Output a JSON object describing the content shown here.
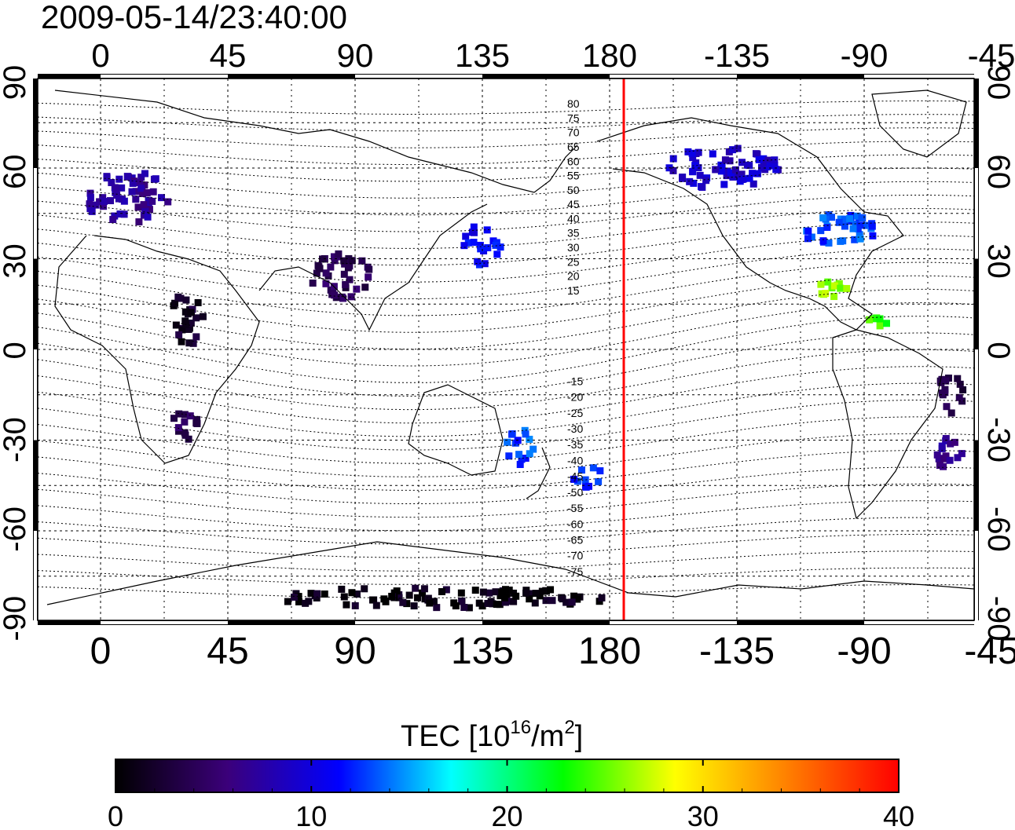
{
  "timestamp": "2009-05-14/23:40:00",
  "lon_ticks": [
    "0",
    "45",
    "90",
    "135",
    "180",
    "-135",
    "-90",
    "-45"
  ],
  "lat_ticks": [
    "90",
    "60",
    "30",
    "0",
    "-30",
    "-60",
    "-90"
  ],
  "map": {
    "type": "heatmap",
    "projection": "equirectangular, centered near 150E",
    "grid": true,
    "red_line_longitude": -175,
    "lat_contour_labels": [
      "80",
      "75",
      "70",
      "65",
      "60",
      "55",
      "50",
      "45",
      "40",
      "35",
      "30",
      "25",
      "20",
      "15",
      "-15",
      "-20",
      "-25",
      "-30",
      "-35",
      "-40",
      "-45",
      "-50",
      "-55",
      "-60",
      "-65",
      "-70",
      "-75"
    ]
  },
  "colorbar": {
    "title_prefix": "TEC  [10",
    "title_exp": "16",
    "title_mid": "/m",
    "title_exp2": "2",
    "title_suffix": "]",
    "range": [
      0,
      40
    ],
    "ticks": [
      "0",
      "10",
      "20",
      "30",
      "40"
    ],
    "stops": [
      "#000000",
      "#3b007a",
      "#0000ff",
      "#00ffff",
      "#00ff00",
      "#ffff00",
      "#ff8000",
      "#ff0000"
    ]
  },
  "chart_data": {
    "type": "heatmap",
    "quantity": "TEC",
    "unit": "10^16/m^2",
    "value_range": [
      0,
      40
    ],
    "regions": [
      {
        "lon": 10,
        "lat": 50,
        "tec": 7
      },
      {
        "lon": 30,
        "lat": 10,
        "tec": 2
      },
      {
        "lon": 30,
        "lat": -25,
        "tec": 4
      },
      {
        "lon": 85,
        "lat": 25,
        "tec": 4
      },
      {
        "lon": 135,
        "lat": 35,
        "tec": 11
      },
      {
        "lon": 148,
        "lat": -32,
        "tec": 13
      },
      {
        "lon": 172,
        "lat": -42,
        "tec": 12
      },
      {
        "lon": -140,
        "lat": 60,
        "tec": 9
      },
      {
        "lon": -100,
        "lat": 40,
        "tec": 13
      },
      {
        "lon": -100,
        "lat": 20,
        "tec": 26
      },
      {
        "lon": -85,
        "lat": 10,
        "tec": 24
      },
      {
        "lon": -60,
        "lat": -15,
        "tec": 3
      },
      {
        "lon": -60,
        "lat": -35,
        "tec": 7
      },
      {
        "lon": 120,
        "lat": -82,
        "tec": 1
      }
    ]
  }
}
